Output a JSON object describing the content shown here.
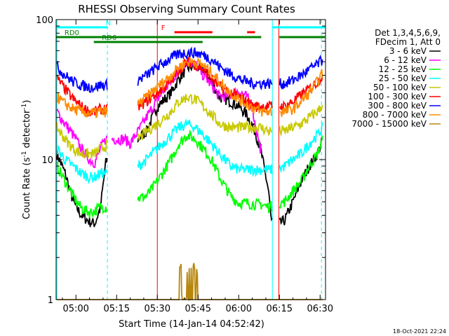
{
  "chart_data": {
    "type": "line",
    "title": "RHESSI Observing Summary Count Rates",
    "xlabel": "Start Time (14-Jan-14 04:52:42)",
    "ylabel": "Count Rate (s",
    "ylabel_sup1": "-1",
    "ylabel_mid": " detector",
    "ylabel_sup2": "-1",
    "ylabel_end": ")",
    "yscale": "log",
    "ylim": [
      1,
      100
    ],
    "xlim_minutes": [
      292.7,
      392.0
    ],
    "x_ticks": [
      {
        "label": "05:00",
        "minute": 300
      },
      {
        "label": "05:15",
        "minute": 315
      },
      {
        "label": "05:30",
        "minute": 330
      },
      {
        "label": "05:45",
        "minute": 345
      },
      {
        "label": "06:00",
        "minute": 360
      },
      {
        "label": "06:15",
        "minute": 375
      },
      {
        "label": "06:30",
        "minute": 390
      }
    ],
    "y_ticks": [
      {
        "label": "1",
        "value": 1
      },
      {
        "label": "10",
        "value": 10
      },
      {
        "label": "100",
        "value": 100
      }
    ],
    "legend_header": [
      "Det 1,3,4,5,6,9,",
      "FDecim 1, Att 0"
    ],
    "legend_position": "right",
    "series": [
      {
        "name": "3 - 6 keV",
        "color": "#000000"
      },
      {
        "name": "6 - 12 keV",
        "color": "#ff00ff"
      },
      {
        "name": "12 - 25 keV",
        "color": "#00ff00"
      },
      {
        "name": "25 - 50 keV",
        "color": "#00ffff"
      },
      {
        "name": "50 - 100 keV",
        "color": "#c8c800"
      },
      {
        "name": "100 - 300 keV",
        "color": "#ff0000"
      },
      {
        "name": "300 - 800 keV",
        "color": "#0000ff"
      },
      {
        "name": "800 - 7000 keV",
        "color": "#ff8c00"
      },
      {
        "name": "7000 - 15000 keV",
        "color": "#b8860b"
      }
    ],
    "series_profiles": [
      [
        [
          293,
          11
        ],
        [
          296,
          8
        ],
        [
          299,
          5
        ],
        [
          302,
          4
        ],
        [
          305,
          3.6
        ],
        [
          307,
          3.5
        ],
        [
          309,
          4.5
        ],
        [
          311,
          9.5
        ],
        [
          315,
          13
        ],
        [
          318,
          13
        ],
        [
          320,
          12.5
        ],
        [
          323,
          14
        ],
        [
          326,
          16
        ],
        [
          330,
          24
        ],
        [
          335,
          30
        ],
        [
          338,
          38
        ],
        [
          341,
          45
        ],
        [
          344,
          47
        ],
        [
          347,
          44
        ],
        [
          350,
          36
        ],
        [
          353,
          28
        ],
        [
          357,
          26
        ],
        [
          360,
          24
        ],
        [
          363,
          21
        ],
        [
          366,
          16
        ],
        [
          368,
          12
        ],
        [
          371,
          6
        ],
        [
          372,
          3.6
        ],
        [
          374,
          3.4
        ],
        [
          377,
          3.7
        ],
        [
          380,
          5
        ],
        [
          383,
          7
        ],
        [
          386,
          9
        ],
        [
          389,
          11
        ],
        [
          391,
          14
        ]
      ],
      [
        [
          293,
          22
        ],
        [
          296,
          18
        ],
        [
          299,
          15
        ],
        [
          302,
          12
        ],
        [
          305,
          10
        ],
        [
          307,
          9.5
        ],
        [
          309,
          12
        ],
        [
          311,
          14
        ],
        [
          315,
          14
        ],
        [
          318,
          14
        ],
        [
          320,
          13
        ],
        [
          323,
          16
        ],
        [
          326,
          20
        ],
        [
          330,
          27
        ],
        [
          335,
          36
        ],
        [
          338,
          44
        ],
        [
          341,
          50
        ],
        [
          344,
          48
        ],
        [
          347,
          40
        ],
        [
          350,
          34
        ],
        [
          353,
          28
        ],
        [
          357,
          29
        ],
        [
          360,
          31
        ],
        [
          363,
          28
        ],
        [
          365,
          24
        ],
        [
          366,
          18
        ],
        [
          368,
          12
        ]
      ],
      [
        [
          293,
          9
        ],
        [
          296,
          7
        ],
        [
          299,
          5.5
        ],
        [
          302,
          4.5
        ],
        [
          305,
          4.2
        ],
        [
          307,
          4.3
        ],
        [
          309,
          4.6
        ],
        [
          311,
          4.6
        ],
        [
          315,
          4.6
        ],
        [
          318,
          4.7
        ],
        [
          320,
          5
        ],
        [
          323,
          5.3
        ],
        [
          326,
          5.5
        ],
        [
          330,
          7
        ],
        [
          335,
          10
        ],
        [
          338,
          13
        ],
        [
          341,
          15
        ],
        [
          344,
          14
        ],
        [
          347,
          12
        ],
        [
          350,
          10
        ],
        [
          353,
          7.5
        ],
        [
          357,
          5.5
        ],
        [
          360,
          4.9
        ],
        [
          363,
          4.9
        ],
        [
          366,
          4.8
        ],
        [
          368,
          4.8
        ],
        [
          371,
          4.6
        ],
        [
          374,
          4.8
        ],
        [
          377,
          5
        ],
        [
          380,
          6
        ],
        [
          383,
          7
        ],
        [
          386,
          9
        ],
        [
          389,
          11
        ],
        [
          391,
          14
        ]
      ],
      [
        [
          293,
          12
        ],
        [
          296,
          10
        ],
        [
          299,
          9
        ],
        [
          302,
          8
        ],
        [
          305,
          7.5
        ],
        [
          307,
          7.5
        ],
        [
          309,
          8
        ],
        [
          311,
          8
        ],
        [
          315,
          8
        ],
        [
          318,
          8
        ],
        [
          320,
          8.5
        ],
        [
          323,
          9
        ],
        [
          326,
          10
        ],
        [
          330,
          12
        ],
        [
          335,
          15
        ],
        [
          338,
          17
        ],
        [
          341,
          18
        ],
        [
          344,
          17
        ],
        [
          347,
          15
        ],
        [
          350,
          13
        ],
        [
          353,
          11
        ],
        [
          357,
          9
        ],
        [
          360,
          8.5
        ],
        [
          363,
          8.5
        ],
        [
          366,
          8.5
        ],
        [
          368,
          8.5
        ],
        [
          371,
          8.5
        ],
        [
          374,
          8.5
        ],
        [
          377,
          9
        ],
        [
          380,
          10
        ],
        [
          383,
          11
        ],
        [
          386,
          13
        ],
        [
          389,
          15
        ],
        [
          391,
          17
        ]
      ],
      [
        [
          293,
          17
        ],
        [
          296,
          14
        ],
        [
          299,
          12
        ],
        [
          302,
          11
        ],
        [
          305,
          11
        ],
        [
          307,
          11
        ],
        [
          309,
          12
        ],
        [
          311,
          12.5
        ],
        [
          315,
          12.5
        ],
        [
          318,
          13
        ],
        [
          320,
          13.5
        ],
        [
          323,
          14
        ],
        [
          326,
          16
        ],
        [
          330,
          18
        ],
        [
          335,
          22
        ],
        [
          338,
          26
        ],
        [
          341,
          28
        ],
        [
          344,
          27
        ],
        [
          347,
          24
        ],
        [
          350,
          21
        ],
        [
          353,
          18
        ],
        [
          357,
          17
        ],
        [
          360,
          17
        ],
        [
          363,
          17
        ],
        [
          366,
          17
        ],
        [
          368,
          17
        ],
        [
          371,
          16
        ],
        [
          374,
          16
        ],
        [
          377,
          16
        ],
        [
          380,
          17
        ],
        [
          383,
          18
        ],
        [
          386,
          20
        ],
        [
          389,
          22
        ],
        [
          391,
          25
        ]
      ],
      [
        [
          293,
          38
        ],
        [
          296,
          32
        ],
        [
          299,
          27
        ],
        [
          302,
          24
        ],
        [
          305,
          22
        ],
        [
          307,
          22
        ],
        [
          309,
          23
        ],
        [
          311,
          23
        ],
        [
          315,
          22.5
        ],
        [
          318,
          22
        ],
        [
          320,
          23
        ],
        [
          323,
          24
        ],
        [
          326,
          26
        ],
        [
          330,
          30
        ],
        [
          335,
          36
        ],
        [
          338,
          44
        ],
        [
          341,
          50
        ],
        [
          344,
          48
        ],
        [
          347,
          44
        ],
        [
          350,
          38
        ],
        [
          353,
          33
        ],
        [
          357,
          30
        ],
        [
          360,
          28
        ],
        [
          363,
          26
        ],
        [
          366,
          24
        ],
        [
          368,
          24
        ],
        [
          371,
          24
        ],
        [
          374,
          24
        ],
        [
          377,
          24
        ],
        [
          380,
          26
        ],
        [
          383,
          29
        ],
        [
          386,
          32
        ],
        [
          389,
          36
        ],
        [
          391,
          40
        ]
      ],
      [
        [
          293,
          46
        ],
        [
          296,
          40
        ],
        [
          299,
          36
        ],
        [
          302,
          34
        ],
        [
          305,
          33
        ],
        [
          307,
          33
        ],
        [
          309,
          34
        ],
        [
          311,
          34
        ],
        [
          315,
          34
        ],
        [
          318,
          34
        ],
        [
          320,
          35
        ],
        [
          323,
          37
        ],
        [
          326,
          40
        ],
        [
          330,
          46
        ],
        [
          335,
          53
        ],
        [
          338,
          57
        ],
        [
          341,
          58
        ],
        [
          344,
          58
        ],
        [
          347,
          56
        ],
        [
          350,
          52
        ],
        [
          353,
          46
        ],
        [
          357,
          41
        ],
        [
          360,
          38
        ],
        [
          363,
          36
        ],
        [
          366,
          35
        ],
        [
          368,
          35
        ],
        [
          371,
          35
        ],
        [
          374,
          35
        ],
        [
          377,
          35
        ],
        [
          380,
          37
        ],
        [
          383,
          40
        ],
        [
          386,
          44
        ],
        [
          389,
          48
        ],
        [
          391,
          52
        ]
      ],
      [
        [
          293,
          28
        ],
        [
          296,
          25
        ],
        [
          299,
          23
        ],
        [
          302,
          22
        ],
        [
          305,
          21.5
        ],
        [
          307,
          21.5
        ],
        [
          309,
          22
        ],
        [
          311,
          22
        ],
        [
          315,
          22
        ],
        [
          318,
          22
        ],
        [
          320,
          23
        ],
        [
          323,
          25
        ],
        [
          326,
          28
        ],
        [
          330,
          33
        ],
        [
          335,
          40
        ],
        [
          338,
          46
        ],
        [
          341,
          50
        ],
        [
          344,
          50
        ],
        [
          347,
          47
        ],
        [
          350,
          42
        ],
        [
          353,
          36
        ],
        [
          357,
          30
        ],
        [
          360,
          27
        ],
        [
          363,
          25
        ],
        [
          366,
          23
        ],
        [
          368,
          22
        ],
        [
          371,
          22
        ],
        [
          374,
          22
        ],
        [
          377,
          22
        ],
        [
          380,
          23
        ],
        [
          383,
          26
        ],
        [
          386,
          30
        ],
        [
          389,
          36
        ],
        [
          391,
          42
        ]
      ],
      [
        [
          293,
          1
        ],
        [
          391,
          1
        ]
      ]
    ],
    "series_segments": [
      [
        [
          293,
          311.6
        ],
        [
          322.8,
          372.4
        ],
        [
          375.1,
          391
        ]
      ],
      [
        [
          293,
          311.6
        ],
        [
          313.2,
          368.5
        ]
      ],
      [
        [
          293,
          311.6
        ],
        [
          322.8,
          372.4
        ],
        [
          375.1,
          391
        ]
      ],
      [
        [
          293,
          311.6
        ],
        [
          322.8,
          372.4
        ],
        [
          375.1,
          391
        ]
      ],
      [
        [
          293,
          311.6
        ],
        [
          322.8,
          372.4
        ],
        [
          375.1,
          391
        ]
      ],
      [
        [
          293,
          311.6
        ],
        [
          322.8,
          372.4
        ],
        [
          375.1,
          391
        ]
      ],
      [
        [
          293,
          311.6
        ],
        [
          322.8,
          372.4
        ],
        [
          375.1,
          391
        ]
      ],
      [
        [
          293,
          311.6
        ],
        [
          322.8,
          372.4
        ],
        [
          375.1,
          391
        ]
      ],
      [
        [
          293,
          391
        ]
      ]
    ],
    "flag_bars": [
      {
        "label": "N",
        "color": "#00ffff",
        "segments": [
          [
            292.8,
            311.6
          ],
          [
            372.4,
            391.8
          ]
        ],
        "level": 1
      },
      {
        "label": "F",
        "color": "#ff0000",
        "segments": [
          [
            336.3,
            350.3
          ],
          [
            363.1,
            366.0
          ]
        ],
        "level": 2
      },
      {
        "label": "RD0",
        "color": "#008000",
        "segments": [
          [
            292.8,
            368.3
          ],
          [
            375.0,
            391.8
          ]
        ],
        "level": 3
      },
      {
        "label": "RD6",
        "color": "#008000",
        "segments": [
          [
            306.6,
            346.7
          ]
        ],
        "level": 4
      }
    ],
    "vertical_markers": [
      {
        "minute": 293.0,
        "color": "#00ffff",
        "style": "solid"
      },
      {
        "minute": 311.6,
        "color": "#00ffff",
        "style": "dashed"
      },
      {
        "minute": 330.0,
        "color": "#ff0000",
        "style": "solid"
      },
      {
        "minute": 372.4,
        "color": "#00ffff",
        "style": "solid"
      },
      {
        "minute": 374.8,
        "color": "#ff0000",
        "style": "solid"
      },
      {
        "minute": 390.5,
        "color": "#00ffff",
        "style": "dashed"
      }
    ],
    "annotation": "18-Oct-2021 22:24"
  }
}
